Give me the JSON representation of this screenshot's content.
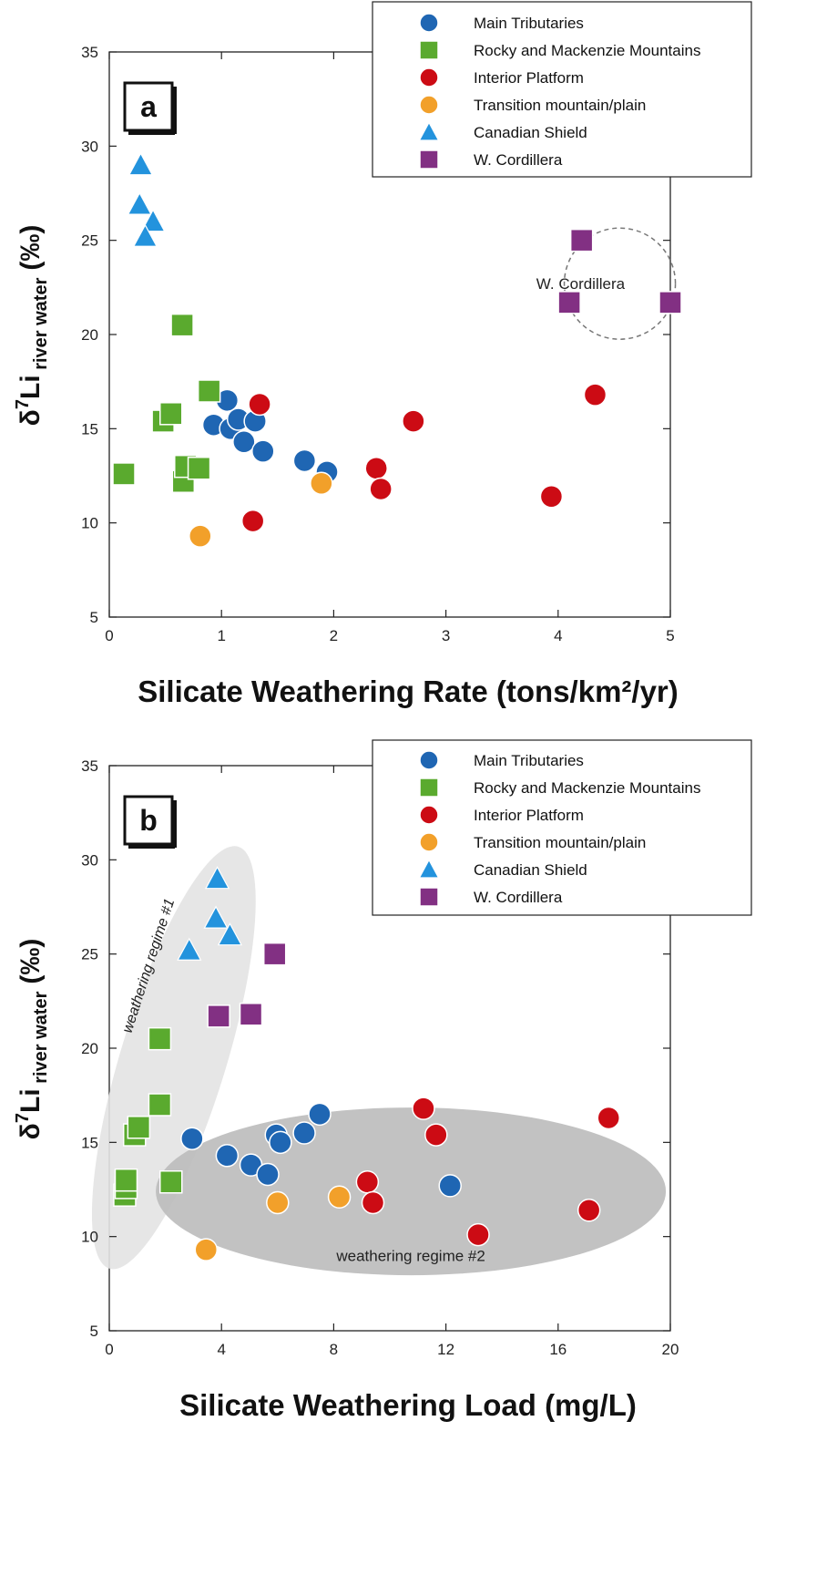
{
  "series_styles": {
    "Main Tributaries": {
      "shape": "circle",
      "color": "#1f66b3"
    },
    "Rocky and Mackenzie Mountains": {
      "shape": "square",
      "color": "#5aaa2e"
    },
    "Interior Platform": {
      "shape": "circle",
      "color": "#cc0b14"
    },
    "Transition mountain/plain": {
      "shape": "circle",
      "color": "#f2a02a"
    },
    "Canadian Shield": {
      "shape": "triangle",
      "color": "#2393dd"
    },
    "W. Cordillera": {
      "shape": "square",
      "color": "#823083"
    }
  },
  "chart_data": [
    {
      "type": "scatter",
      "panel": "a",
      "xlabel": "Silicate Weathering Rate (tons/km²/yr)",
      "ylabel": "δ7Li river water (‰)",
      "ylabel_parts": {
        "delta": "δ",
        "sup": "7",
        "main": "Li",
        "sub": " river water",
        "unit": "(‰)"
      },
      "xlim": [
        0,
        5
      ],
      "ylim": [
        5,
        35
      ],
      "xticks": [
        "0",
        "1",
        "2",
        "3",
        "4",
        "5"
      ],
      "yticks": [
        "5",
        "10",
        "15",
        "20",
        "25",
        "30",
        "35"
      ],
      "legend": [
        "Main Tributaries",
        "Rocky and Mackenzie Mountains",
        "Interior Platform",
        "Transition mountain/plain",
        "Canadian Shield",
        "W. Cordillera"
      ],
      "legend_position": "top-right",
      "annotations": [
        "W. Cordillera"
      ],
      "series": [
        {
          "name": "Main Tributaries",
          "points": [
            [
              0.93,
              15.2
            ],
            [
              1.05,
              16.5
            ],
            [
              1.08,
              15.0
            ],
            [
              1.15,
              15.5
            ],
            [
              1.2,
              14.3
            ],
            [
              1.3,
              15.4
            ],
            [
              1.37,
              13.8
            ],
            [
              1.74,
              13.3
            ],
            [
              1.94,
              12.7
            ]
          ]
        },
        {
          "name": "Rocky and Mackenzie Mountains",
          "points": [
            [
              0.13,
              12.6
            ],
            [
              0.48,
              15.4
            ],
            [
              0.55,
              15.8
            ],
            [
              0.65,
              20.5
            ],
            [
              0.66,
              12.2
            ],
            [
              0.68,
              13.0
            ],
            [
              0.8,
              12.9
            ],
            [
              0.89,
              17.0
            ]
          ]
        },
        {
          "name": "Interior Platform",
          "points": [
            [
              1.28,
              10.1
            ],
            [
              1.34,
              16.3
            ],
            [
              2.38,
              12.9
            ],
            [
              2.42,
              11.8
            ],
            [
              2.71,
              15.4
            ],
            [
              3.94,
              11.4
            ],
            [
              4.33,
              16.8
            ]
          ]
        },
        {
          "name": "Transition mountain/plain",
          "points": [
            [
              0.81,
              9.3
            ],
            [
              1.89,
              12.1
            ]
          ]
        },
        {
          "name": "Canadian Shield",
          "points": [
            [
              0.28,
              29.0
            ],
            [
              0.27,
              26.9
            ],
            [
              0.39,
              26.0
            ],
            [
              0.32,
              25.2
            ]
          ]
        },
        {
          "name": "W. Cordillera",
          "points": [
            [
              4.21,
              25.0
            ],
            [
              4.1,
              21.7
            ],
            [
              5.0,
              21.7
            ]
          ]
        }
      ]
    },
    {
      "type": "scatter",
      "panel": "b",
      "xlabel": "Silicate Weathering Load (mg/L)",
      "ylabel": "δ7Li river water (‰)",
      "ylabel_parts": {
        "delta": "δ",
        "sup": "7",
        "main": "Li",
        "sub": " river water",
        "unit": "(‰)"
      },
      "xlim": [
        0,
        20
      ],
      "ylim": [
        5,
        35
      ],
      "xticks": [
        "0",
        "4",
        "8",
        "12",
        "16",
        "20"
      ],
      "yticks": [
        "5",
        "10",
        "15",
        "20",
        "25",
        "30",
        "35"
      ],
      "legend": [
        "Main Tributaries",
        "Rocky and Mackenzie Mountains",
        "Interior Platform",
        "Transition mountain/plain",
        "Canadian Shield",
        "W. Cordillera"
      ],
      "legend_position": "top-right",
      "annotations": [
        "weathering regime #1",
        "weathering regime #2"
      ],
      "series": [
        {
          "name": "Main Tributaries",
          "points": [
            [
              2.95,
              15.2
            ],
            [
              4.2,
              14.3
            ],
            [
              5.05,
              13.8
            ],
            [
              5.65,
              13.3
            ],
            [
              5.95,
              15.4
            ],
            [
              6.1,
              15.0
            ],
            [
              6.95,
              15.5
            ],
            [
              7.5,
              16.5
            ],
            [
              12.15,
              12.7
            ]
          ]
        },
        {
          "name": "Rocky and Mackenzie Mountains",
          "points": [
            [
              0.55,
              12.2
            ],
            [
              0.6,
              12.6
            ],
            [
              0.6,
              13.0
            ],
            [
              0.9,
              15.4
            ],
            [
              1.05,
              15.8
            ],
            [
              1.8,
              20.5
            ],
            [
              1.8,
              17.0
            ],
            [
              2.2,
              12.9
            ]
          ]
        },
        {
          "name": "Interior Platform",
          "points": [
            [
              9.2,
              12.9
            ],
            [
              9.4,
              11.8
            ],
            [
              11.2,
              16.8
            ],
            [
              11.65,
              15.4
            ],
            [
              13.15,
              10.1
            ],
            [
              17.1,
              11.4
            ],
            [
              17.8,
              16.3
            ]
          ]
        },
        {
          "name": "Transition mountain/plain",
          "points": [
            [
              3.45,
              9.3
            ],
            [
              6.0,
              11.8
            ],
            [
              8.2,
              12.1
            ]
          ]
        },
        {
          "name": "Canadian Shield",
          "points": [
            [
              3.85,
              29.0
            ],
            [
              3.8,
              26.9
            ],
            [
              4.3,
              26.0
            ],
            [
              2.85,
              25.2
            ]
          ]
        },
        {
          "name": "W. Cordillera",
          "points": [
            [
              5.9,
              25.0
            ],
            [
              3.9,
              21.7
            ],
            [
              5.05,
              21.8
            ]
          ]
        }
      ]
    }
  ]
}
